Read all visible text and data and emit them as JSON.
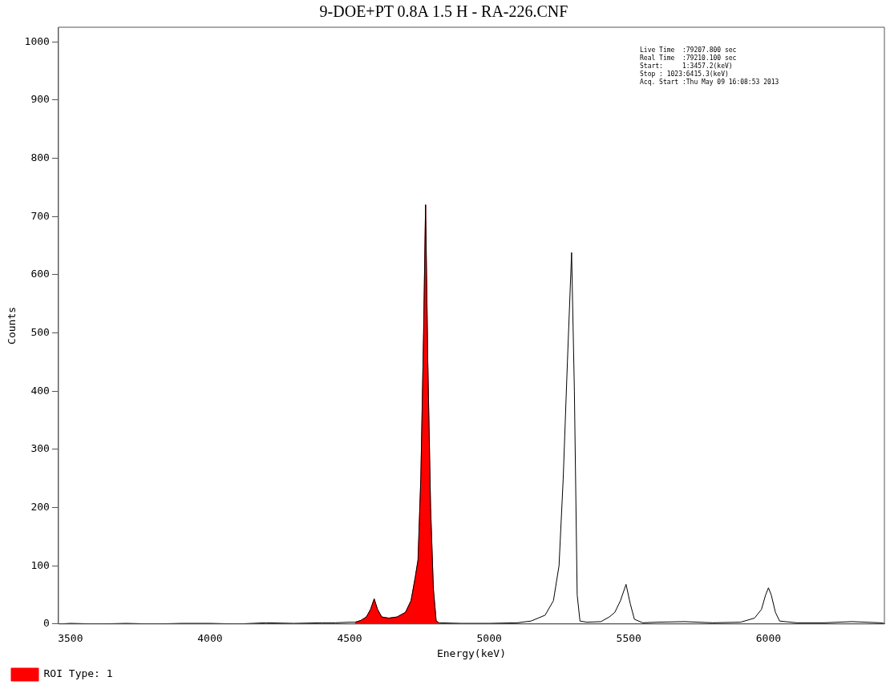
{
  "chart_data": {
    "type": "line",
    "title": "9-DOE+PT 0.8A 1.5 H - RA-226.CNF",
    "xlabel": "Energy(keV)",
    "ylabel": "Counts",
    "annotations": [
      "Live Time  :79207.800 sec",
      "Real Time  :79210.100 sec",
      "Start:     1:3457.2(keV)",
      "Stop : 1023:6415.3(keV)",
      "Acq. Start :Thu May 09 16:08:53 2013"
    ],
    "xlim": [
      3457.2,
      6415.3
    ],
    "ylim": [
      0,
      1025
    ],
    "xticks": [
      3500,
      4000,
      4500,
      5000,
      5500,
      6000
    ],
    "yticks": [
      0,
      100,
      200,
      300,
      400,
      500,
      600,
      700,
      800,
      900,
      1000
    ],
    "legend": "bottom left",
    "marker": "none",
    "series": [
      {
        "type": "line",
        "color": "#000000",
        "x": [
          3458,
          3500,
          3600,
          3700,
          3800,
          3900,
          4000,
          4100,
          4200,
          4300,
          4400,
          4450,
          4500,
          4520,
          4540,
          4560,
          4575,
          4588,
          4600,
          4615,
          4640,
          4670,
          4700,
          4720,
          4735,
          4745,
          4755,
          4765,
          4772,
          4780,
          4790,
          4800,
          4810,
          4820,
          4900,
          5000,
          5100,
          5150,
          5200,
          5230,
          5250,
          5265,
          5280,
          5295,
          5305,
          5315,
          5325,
          5350,
          5400,
          5430,
          5450,
          5470,
          5490,
          5505,
          5520,
          5550,
          5600,
          5700,
          5800,
          5900,
          5950,
          5975,
          5990,
          6000,
          6010,
          6025,
          6040,
          6100,
          6200,
          6300,
          6400,
          6415
        ],
        "values": [
          0,
          1,
          0,
          1,
          0,
          1,
          1,
          0,
          2,
          1,
          2,
          2,
          3,
          3,
          6,
          12,
          25,
          43,
          25,
          12,
          10,
          12,
          20,
          40,
          80,
          110,
          250,
          500,
          720,
          450,
          200,
          60,
          5,
          2,
          1,
          1,
          2,
          5,
          15,
          40,
          100,
          250,
          450,
          638,
          400,
          50,
          5,
          3,
          4,
          12,
          20,
          40,
          68,
          35,
          8,
          2,
          3,
          4,
          2,
          3,
          10,
          25,
          50,
          62,
          50,
          20,
          5,
          2,
          2,
          4,
          2,
          1
        ]
      },
      {
        "type": "area",
        "name": "ROI Type: 1",
        "color": "#ff0000",
        "x": [
          4520,
          4540,
          4560,
          4575,
          4588,
          4600,
          4615,
          4640,
          4670,
          4700,
          4720,
          4735,
          4745,
          4755,
          4765,
          4772,
          4780,
          4790,
          4800,
          4810,
          4820
        ],
        "values": [
          3,
          6,
          12,
          25,
          43,
          25,
          12,
          10,
          12,
          20,
          40,
          80,
          110,
          250,
          500,
          720,
          450,
          200,
          60,
          5,
          2
        ]
      }
    ]
  }
}
